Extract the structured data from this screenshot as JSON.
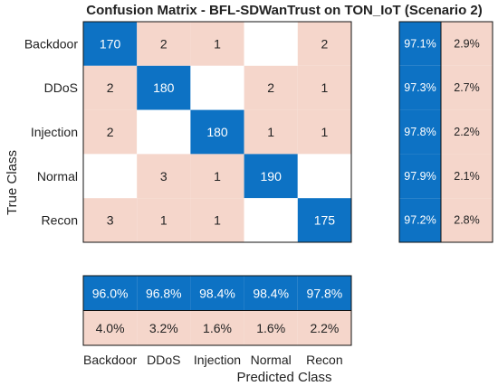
{
  "chart_data": {
    "type": "heatmap",
    "title": "Confusion Matrix - BFL-SDWanTrust on TON_IoT (Scenario 2)",
    "xlabel": "Predicted Class",
    "ylabel": "True Class",
    "classes": [
      "Backdoor",
      "DDoS",
      "Injection",
      "Normal",
      "Recon"
    ],
    "matrix": [
      [
        170,
        2,
        1,
        null,
        2
      ],
      [
        2,
        180,
        null,
        2,
        1
      ],
      [
        2,
        null,
        180,
        1,
        1
      ],
      [
        null,
        3,
        1,
        190,
        null
      ],
      [
        3,
        1,
        1,
        null,
        175
      ]
    ],
    "row_summary": {
      "correct": [
        "97.1%",
        "97.3%",
        "97.8%",
        "97.9%",
        "97.2%"
      ],
      "incorrect": [
        "2.9%",
        "2.7%",
        "2.2%",
        "2.1%",
        "2.8%"
      ]
    },
    "column_summary": {
      "correct": [
        "96.0%",
        "96.8%",
        "98.4%",
        "98.4%",
        "97.8%"
      ],
      "incorrect": [
        "4.0%",
        "3.2%",
        "1.6%",
        "1.6%",
        "2.2%"
      ]
    },
    "colors": {
      "diagonal": "#0d72c4",
      "off_diagonal": "#f5d6cb",
      "empty": "#ffffff",
      "correct": "#0d72c4",
      "incorrect": "#f5d6cb",
      "border": "#111111"
    }
  }
}
